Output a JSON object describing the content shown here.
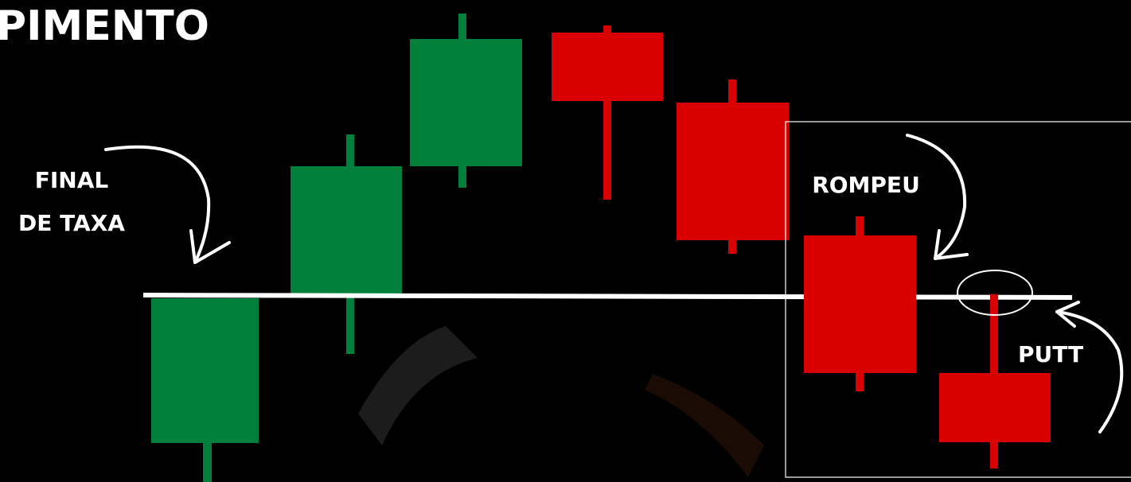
{
  "header": {
    "title": "PIMENTO"
  },
  "labels": {
    "final": "FINAL",
    "de_taxa": "DE TAXA",
    "rompeu": "ROMPEU",
    "putt": "PUTT"
  }
}
